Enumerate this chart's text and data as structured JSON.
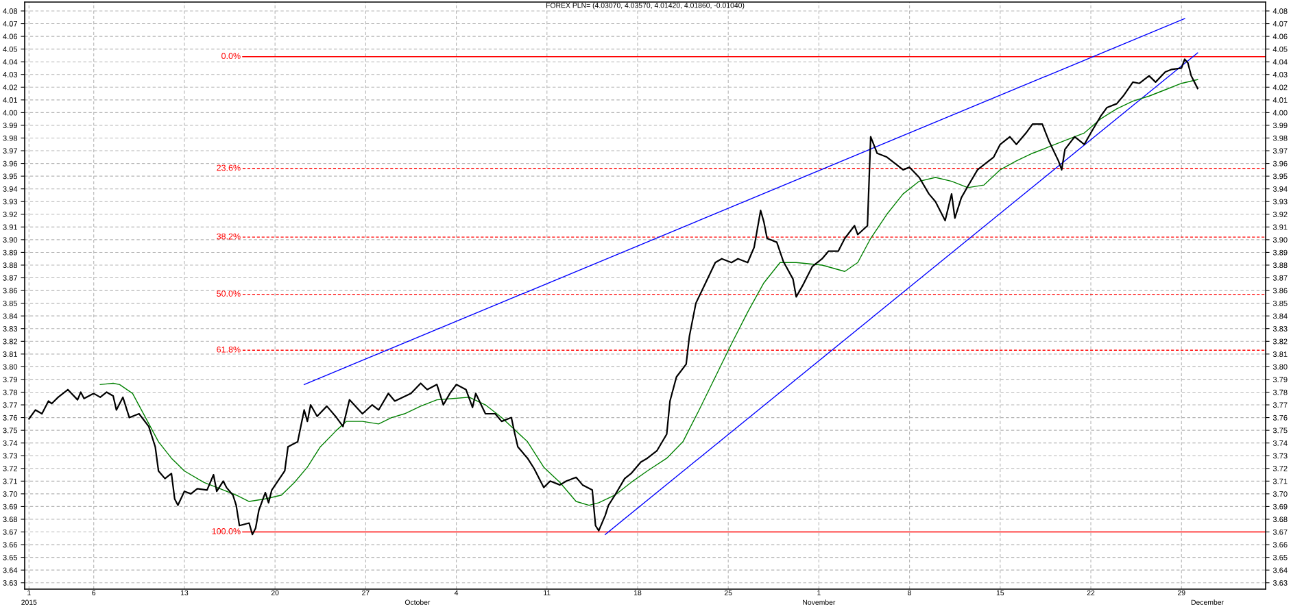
{
  "chart_data": {
    "type": "line",
    "title": "FOREX PLN= (4.03070, 4.03570, 4.01420, 4.01860, -0.01040)",
    "xlim": [
      "2015-08-31T16:00",
      "2015-12-05T12:00"
    ],
    "xticks": [
      {
        "value": "2015-09-01",
        "label": "1"
      },
      {
        "value": "2015-09-06",
        "label": "6"
      },
      {
        "value": "2015-09-13",
        "label": "13"
      },
      {
        "value": "2015-09-20",
        "label": "20"
      },
      {
        "value": "2015-09-27",
        "label": "27"
      },
      {
        "value": "2015-10-04",
        "label": "4"
      },
      {
        "value": "2015-10-11",
        "label": "11"
      },
      {
        "value": "2015-10-18",
        "label": "18"
      },
      {
        "value": "2015-10-25",
        "label": "25"
      },
      {
        "value": "2015-11-01",
        "label": "1"
      },
      {
        "value": "2015-11-08",
        "label": "8"
      },
      {
        "value": "2015-11-15",
        "label": "15"
      },
      {
        "value": "2015-11-22",
        "label": "22"
      },
      {
        "value": "2015-11-29",
        "label": "29"
      }
    ],
    "x2lim": [
      "2015-08-31T16:00",
      "2015-12-05T12:00"
    ],
    "x2ticks": [
      {
        "value": "2015-09-01",
        "label": "2015"
      },
      {
        "value": "2015-10-01",
        "label": "October"
      },
      {
        "value": "2015-11-01",
        "label": "November"
      },
      {
        "value": "2015-12-01",
        "label": "December"
      }
    ],
    "ylim": [
      3.625,
      4.087
    ],
    "yticks": [
      3.63,
      3.64,
      3.65,
      3.66,
      3.67,
      3.68,
      3.69,
      {
        "value": 3.7,
        "label": "3.70"
      },
      3.71,
      3.72,
      3.73,
      3.74,
      3.75,
      3.76,
      3.77,
      3.78,
      3.79,
      {
        "value": 3.8,
        "label": "3.80"
      },
      3.81,
      3.82,
      3.83,
      3.84,
      3.85,
      3.86,
      3.87,
      3.88,
      3.89,
      {
        "value": 3.9,
        "label": "3.90"
      },
      3.91,
      3.92,
      3.93,
      3.94,
      3.95,
      3.96,
      3.97,
      3.98,
      3.99,
      {
        "value": 4.0,
        "label": "4.00"
      },
      4.01,
      4.02,
      4.03,
      4.04,
      4.05,
      4.06,
      4.07,
      4.08
    ],
    "y2lim": [
      3.625,
      4.087
    ],
    "y2ticks": [
      3.63,
      3.64,
      3.65,
      3.66,
      3.67,
      3.68,
      3.69,
      {
        "value": 3.7,
        "label": "3.70"
      },
      3.71,
      3.72,
      3.73,
      3.74,
      3.75,
      3.76,
      3.77,
      3.78,
      3.79,
      {
        "value": 3.8,
        "label": "3.80"
      },
      3.81,
      3.82,
      3.83,
      3.84,
      3.85,
      3.86,
      3.87,
      3.88,
      3.89,
      {
        "value": 3.9,
        "label": "3.90"
      },
      3.91,
      3.92,
      3.93,
      3.94,
      3.95,
      3.96,
      3.97,
      3.98,
      3.99,
      {
        "value": 4.0,
        "label": "4.00"
      },
      4.01,
      4.02,
      4.03,
      4.04,
      4.05,
      4.06,
      4.07,
      4.08
    ],
    "grid": true,
    "series": [
      {
        "color": "#000000",
        "x": [
          "2015-09-01T00:00",
          "2015-09-01T12:00",
          "2015-09-02T00:00",
          "2015-09-02T12:00",
          "2015-09-02T18:00",
          "2015-09-03T06:00",
          "2015-09-04T00:00",
          "2015-09-04T18:00",
          "2015-09-05T00:00",
          "2015-09-05T06:00",
          "2015-09-06T00:00",
          "2015-09-06T12:00",
          "2015-09-07T00:00",
          "2015-09-07T12:00",
          "2015-09-07T18:00",
          "2015-09-08T06:00",
          "2015-09-08T18:00",
          "2015-09-09T12:00",
          "2015-09-10T06:00",
          "2015-09-10T18:00",
          "2015-09-11T00:00",
          "2015-09-11T12:00",
          "2015-09-12T00:00",
          "2015-09-12T06:00",
          "2015-09-12T12:00",
          "2015-09-13T00:00",
          "2015-09-13T12:00",
          "2015-09-14T00:00",
          "2015-09-14T18:00",
          "2015-09-15T06:00",
          "2015-09-15T12:00",
          "2015-09-16T00:00",
          "2015-09-16T06:00",
          "2015-09-16T18:00",
          "2015-09-17T00:00",
          "2015-09-17T06:00",
          "2015-09-18T00:00",
          "2015-09-18T06:00",
          "2015-09-18T12:00",
          "2015-09-18T18:00",
          "2015-09-19T06:00",
          "2015-09-19T12:00",
          "2015-09-19T18:00",
          "2015-09-20T18:00",
          "2015-09-21T00:00",
          "2015-09-21T18:00",
          "2015-09-22T06:00",
          "2015-09-22T12:00",
          "2015-09-22T18:00",
          "2015-09-23T06:00",
          "2015-09-24T00:00",
          "2015-09-24T18:00",
          "2015-09-25T06:00",
          "2015-09-25T18:00",
          "2015-09-26T18:00",
          "2015-09-27T12:00",
          "2015-09-28T00:00",
          "2015-09-28T18:00",
          "2015-09-29T06:00",
          "2015-09-30T12:00",
          "2015-10-01T06:00",
          "2015-10-01T18:00",
          "2015-10-02T12:00",
          "2015-10-03T00:00",
          "2015-10-03T12:00",
          "2015-10-04T00:00",
          "2015-10-04T18:00",
          "2015-10-05T06:00",
          "2015-10-05T12:00",
          "2015-10-06T06:00",
          "2015-10-07T00:00",
          "2015-10-07T12:00",
          "2015-10-08T06:00",
          "2015-10-08T12:00",
          "2015-10-08T18:00",
          "2015-10-09T12:00",
          "2015-10-10T00:00",
          "2015-10-10T18:00",
          "2015-10-11T06:00",
          "2015-10-12T00:00",
          "2015-10-12T12:00",
          "2015-10-13T06:00",
          "2015-10-13T18:00",
          "2015-10-14T12:00",
          "2015-10-14T18:00",
          "2015-10-15T00:00",
          "2015-10-15T12:00",
          "2015-10-15T18:00",
          "2015-10-16T06:00",
          "2015-10-17T00:00",
          "2015-10-17T12:00",
          "2015-10-18T06:00",
          "2015-10-18T18:00",
          "2015-10-19T12:00",
          "2015-10-20T06:00",
          "2015-10-20T12:00",
          "2015-10-21T00:00",
          "2015-10-21T18:00",
          "2015-10-22T00:00",
          "2015-10-22T12:00",
          "2015-10-23T06:00",
          "2015-10-24T00:00",
          "2015-10-24T12:00",
          "2015-10-25T06:00",
          "2015-10-25T18:00",
          "2015-10-26T12:00",
          "2015-10-27T00:00",
          "2015-10-27T12:00",
          "2015-10-27T18:00",
          "2015-10-28T00:00",
          "2015-10-28T18:00",
          "2015-10-29T06:00",
          "2015-10-30T00:00",
          "2015-10-30T06:00",
          "2015-10-30T18:00",
          "2015-10-31T12:00",
          "2015-11-01T06:00",
          "2015-11-01T18:00",
          "2015-11-02T12:00",
          "2015-11-03T00:00",
          "2015-11-03T18:00",
          "2015-11-04T00:00",
          "2015-11-04T18:00",
          "2015-11-05T00:00",
          "2015-11-05T12:00",
          "2015-11-06T06:00",
          "2015-11-07T00:00",
          "2015-11-07T12:00",
          "2015-11-08T00:00",
          "2015-11-08T18:00",
          "2015-11-09T12:00",
          "2015-11-10T00:00",
          "2015-11-10T18:00",
          "2015-11-11T06:00",
          "2015-11-11T12:00",
          "2015-11-12T00:00",
          "2015-11-12T12:00",
          "2015-11-13T06:00",
          "2015-11-13T18:00",
          "2015-11-14T12:00",
          "2015-11-15T00:00",
          "2015-11-15T18:00",
          "2015-11-16T06:00",
          "2015-11-17T00:00",
          "2015-11-17T12:00",
          "2015-11-18T06:00",
          "2015-11-18T18:00",
          "2015-11-19T12:00",
          "2015-11-19T18:00",
          "2015-11-20T00:00",
          "2015-11-20T18:00",
          "2015-11-21T12:00",
          "2015-11-22T00:00",
          "2015-11-22T18:00",
          "2015-11-23T06:00",
          "2015-11-24T00:00",
          "2015-11-24T12:00",
          "2015-11-25T06:00",
          "2015-11-25T18:00",
          "2015-11-26T12:00",
          "2015-11-27T00:00",
          "2015-11-27T18:00",
          "2015-11-28T06:00",
          "2015-11-29T00:00",
          "2015-11-29T06:00",
          "2015-11-29T12:00",
          "2015-11-29T18:00",
          "2015-11-30T06:00"
        ],
        "values": [
          3.759,
          3.766,
          3.763,
          3.773,
          3.771,
          3.776,
          3.782,
          3.774,
          3.78,
          3.775,
          3.779,
          3.776,
          3.78,
          3.777,
          3.766,
          3.776,
          3.76,
          3.763,
          3.753,
          3.737,
          3.718,
          3.712,
          3.716,
          3.696,
          3.691,
          3.702,
          3.7,
          3.704,
          3.703,
          3.715,
          3.702,
          3.71,
          3.705,
          3.699,
          3.691,
          3.675,
          3.677,
          3.668,
          3.673,
          3.687,
          3.701,
          3.693,
          3.703,
          3.718,
          3.737,
          3.741,
          3.766,
          3.757,
          3.77,
          3.761,
          3.769,
          3.76,
          3.753,
          3.774,
          3.763,
          3.77,
          3.766,
          3.779,
          3.773,
          3.779,
          3.787,
          3.782,
          3.786,
          3.77,
          3.779,
          3.786,
          3.782,
          3.768,
          3.779,
          3.763,
          3.763,
          3.757,
          3.76,
          3.748,
          3.737,
          3.728,
          3.72,
          3.705,
          3.71,
          3.707,
          3.71,
          3.713,
          3.707,
          3.703,
          3.675,
          3.671,
          3.683,
          3.691,
          3.699,
          3.712,
          3.716,
          3.725,
          3.728,
          3.734,
          3.747,
          3.773,
          3.792,
          3.802,
          3.824,
          3.85,
          3.866,
          3.882,
          3.885,
          3.882,
          3.885,
          3.882,
          3.894,
          3.923,
          3.914,
          3.901,
          3.898,
          3.883,
          3.869,
          3.855,
          3.864,
          3.879,
          3.885,
          3.891,
          3.891,
          3.901,
          3.911,
          3.904,
          3.911,
          3.981,
          3.968,
          3.965,
          3.959,
          3.955,
          3.957,
          3.949,
          3.936,
          3.93,
          3.915,
          3.936,
          3.917,
          3.933,
          3.942,
          3.955,
          3.959,
          3.965,
          3.975,
          3.981,
          3.975,
          3.984,
          3.991,
          3.991,
          3.978,
          3.962,
          3.955,
          3.971,
          3.981,
          3.975,
          3.984,
          3.997,
          4.004,
          4.007,
          4.013,
          4.024,
          4.023,
          4.029,
          4.024,
          4.032,
          4.034,
          4.035,
          4.042,
          4.039,
          4.029,
          4.019
        ]
      },
      {
        "color": "#008000",
        "x": [
          "2015-09-06T12:00",
          "2015-09-07T12:00",
          "2015-09-08T00:00",
          "2015-09-09T00:00",
          "2015-09-10T00:00",
          "2015-09-11T00:00",
          "2015-09-12T00:00",
          "2015-09-13T00:00",
          "2015-09-14T12:00",
          "2015-09-15T18:00",
          "2015-09-17T00:00",
          "2015-09-18T00:00",
          "2015-09-19T06:00",
          "2015-09-20T12:00",
          "2015-09-21T12:00",
          "2015-09-22T12:00",
          "2015-09-23T12:00",
          "2015-09-24T18:00",
          "2015-09-25T12:00",
          "2015-09-26T18:00",
          "2015-09-28T00:00",
          "2015-09-29T00:00",
          "2015-09-30T00:00",
          "2015-10-01T06:00",
          "2015-10-02T12:00",
          "2015-10-03T18:00",
          "2015-10-05T00:00",
          "2015-10-06T06:00",
          "2015-10-07T12:00",
          "2015-10-09T12:00",
          "2015-10-10T18:00",
          "2015-10-12T00:00",
          "2015-10-13T06:00",
          "2015-10-14T06:00",
          "2015-10-15T00:00",
          "2015-10-16T06:00",
          "2015-10-17T12:00",
          "2015-10-18T18:00",
          "2015-10-20T06:00",
          "2015-10-21T12:00",
          "2015-10-22T18:00",
          "2015-10-24T00:00",
          "2015-10-25T06:00",
          "2015-10-26T12:00",
          "2015-10-27T18:00",
          "2015-10-29T00:00",
          "2015-10-30T06:00",
          "2015-11-01T06:00",
          "2015-11-03T00:00",
          "2015-11-04T00:00",
          "2015-11-05T00:00",
          "2015-11-06T06:00",
          "2015-11-07T12:00",
          "2015-11-08T18:00",
          "2015-11-10T00:00",
          "2015-11-11T06:00",
          "2015-11-12T12:00",
          "2015-11-13T18:00",
          "2015-11-15T00:00",
          "2015-11-16T06:00",
          "2015-11-17T12:00",
          "2015-11-18T18:00",
          "2015-11-20T00:00",
          "2015-11-21T12:00",
          "2015-11-22T18:00",
          "2015-11-24T00:00",
          "2015-11-25T06:00",
          "2015-11-26T12:00",
          "2015-11-27T18:00",
          "2015-11-29T00:00",
          "2015-11-30T06:00"
        ],
        "values": [
          3.786,
          3.787,
          3.786,
          3.779,
          3.76,
          3.741,
          3.728,
          3.718,
          3.709,
          3.704,
          3.699,
          3.694,
          3.696,
          3.699,
          3.709,
          3.721,
          3.737,
          3.75,
          3.757,
          3.757,
          3.755,
          3.76,
          3.763,
          3.769,
          3.774,
          3.775,
          3.776,
          3.77,
          3.76,
          3.741,
          3.721,
          3.709,
          3.694,
          3.691,
          3.693,
          3.699,
          3.709,
          3.718,
          3.728,
          3.741,
          3.766,
          3.792,
          3.818,
          3.843,
          3.866,
          3.882,
          3.882,
          3.88,
          3.875,
          3.882,
          3.901,
          3.92,
          3.936,
          3.946,
          3.949,
          3.946,
          3.941,
          3.943,
          3.955,
          3.962,
          3.968,
          3.973,
          3.978,
          3.984,
          3.995,
          4.003,
          4.009,
          4.013,
          4.018,
          4.023,
          4.026
        ]
      },
      {
        "color": "#0000ff",
        "x": [
          "2015-09-22T06:00",
          "2015-11-29T06:00"
        ],
        "values": [
          3.786,
          4.074
        ]
      },
      {
        "color": "#0000ff",
        "x": [
          "2015-10-15T12:00",
          "2015-11-30T06:00"
        ],
        "values": [
          3.668,
          4.047
        ]
      }
    ],
    "ref_lines": [
      {
        "axis": "y",
        "value": 4.044,
        "color": "#ff0000",
        "line_style": "solid"
      },
      {
        "axis": "y",
        "value": 3.956,
        "color": "#ff0000",
        "line_style": "dashed"
      },
      {
        "axis": "y",
        "value": 3.902,
        "color": "#ff0000",
        "line_style": "dashed"
      },
      {
        "axis": "y",
        "value": 3.857,
        "color": "#ff0000",
        "line_style": "dashed"
      },
      {
        "axis": "y",
        "value": 3.813,
        "color": "#ff0000",
        "line_style": "dashed"
      },
      {
        "axis": "y",
        "value": 3.67,
        "color": "#ff0000",
        "line_style": "solid"
      }
    ],
    "annotations": [
      {
        "text": "0.0%",
        "x": "2015-09-17T12:00",
        "y": 4.044
      },
      {
        "text": "23.6%",
        "x": "2015-09-17T12:00",
        "y": 3.956
      },
      {
        "text": "38.2%",
        "x": "2015-09-17T12:00",
        "y": 3.902
      },
      {
        "text": "50.0%",
        "x": "2015-09-17T12:00",
        "y": 3.857
      },
      {
        "text": "61.8%",
        "x": "2015-09-17T12:00",
        "y": 3.813
      },
      {
        "text": "100.0%",
        "x": "2015-09-17T12:00",
        "y": 3.67
      }
    ]
  }
}
